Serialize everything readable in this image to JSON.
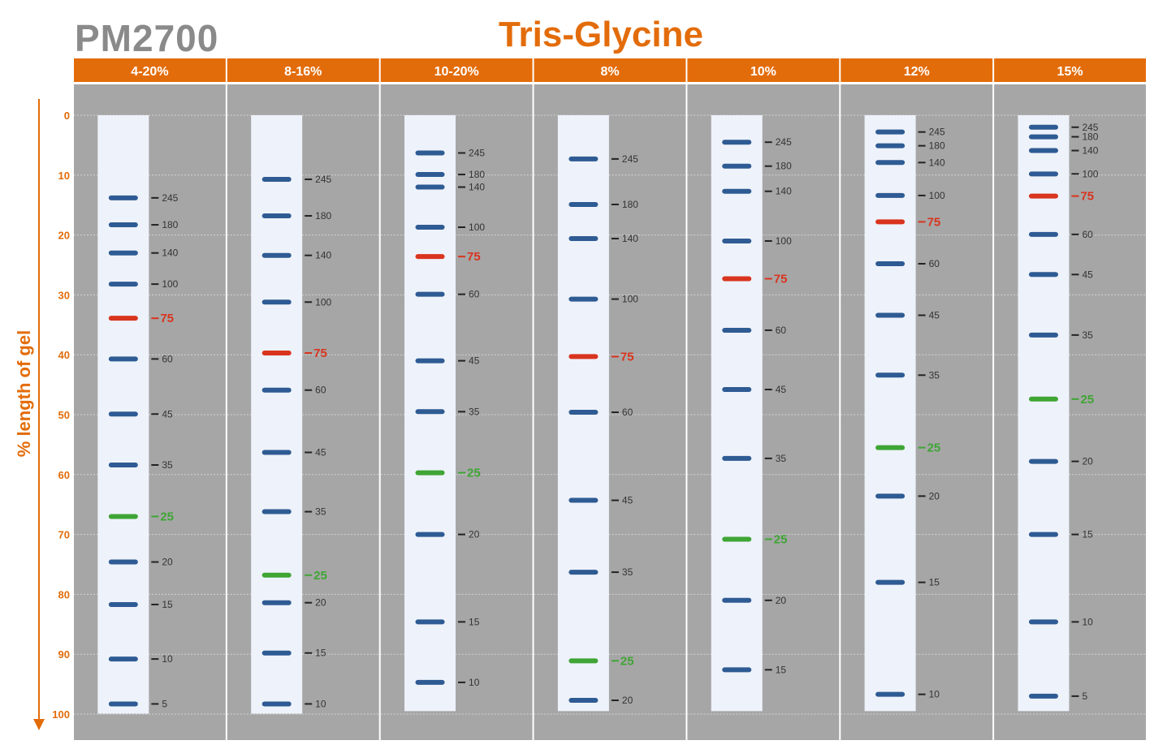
{
  "product_code": "PM2700",
  "chart_data": {
    "type": "table",
    "title": "Tris-Glycine",
    "ylabel": "% length of gel",
    "ylim": [
      0,
      100
    ],
    "yticks": [
      "0",
      "10",
      "20",
      "30",
      "40",
      "50",
      "60",
      "70",
      "80",
      "90",
      "100"
    ],
    "grid": true,
    "colors": {
      "accent": "#E36C0A",
      "panel": "#A6A6A6",
      "lane": "#EEF2FA",
      "band": "#2E5B93",
      "band_75": "#D9341E",
      "band_25": "#3FA535",
      "label": "#333333"
    },
    "gels": [
      {
        "name": "4-20%",
        "bands": [
          {
            "kda": "245",
            "y": 13.8
          },
          {
            "kda": "180",
            "y": 18.3
          },
          {
            "kda": "140",
            "y": 23.0
          },
          {
            "kda": "100",
            "y": 28.2
          },
          {
            "kda": "75",
            "y": 33.9,
            "marker": "red"
          },
          {
            "kda": "60",
            "y": 40.7
          },
          {
            "kda": "45",
            "y": 49.9
          },
          {
            "kda": "35",
            "y": 58.4
          },
          {
            "kda": "25",
            "y": 67.0,
            "marker": "green"
          },
          {
            "kda": "20",
            "y": 74.6
          },
          {
            "kda": "15",
            "y": 81.7
          },
          {
            "kda": "10",
            "y": 90.8
          },
          {
            "kda": "5",
            "y": 98.3
          }
        ]
      },
      {
        "name": "8-16%",
        "bands": [
          {
            "kda": "245",
            "y": 10.7
          },
          {
            "kda": "180",
            "y": 16.8
          },
          {
            "kda": "140",
            "y": 23.4
          },
          {
            "kda": "100",
            "y": 31.2
          },
          {
            "kda": "75",
            "y": 39.7,
            "marker": "red"
          },
          {
            "kda": "60",
            "y": 45.9
          },
          {
            "kda": "45",
            "y": 56.3
          },
          {
            "kda": "35",
            "y": 66.2
          },
          {
            "kda": "25",
            "y": 76.8,
            "marker": "green"
          },
          {
            "kda": "20",
            "y": 81.4
          },
          {
            "kda": "15",
            "y": 89.8
          },
          {
            "kda": "10",
            "y": 98.3
          }
        ]
      },
      {
        "name": "10-20%",
        "bands": [
          {
            "kda": "245",
            "y": 6.3
          },
          {
            "kda": "180",
            "y": 9.9
          },
          {
            "kda": "140",
            "y": 12.0
          },
          {
            "kda": "100",
            "y": 18.7
          },
          {
            "kda": "75",
            "y": 23.6,
            "marker": "red"
          },
          {
            "kda": "60",
            "y": 29.9
          },
          {
            "kda": "45",
            "y": 41.0
          },
          {
            "kda": "35",
            "y": 49.5
          },
          {
            "kda": "25",
            "y": 59.7,
            "marker": "green"
          },
          {
            "kda": "20",
            "y": 70.0
          },
          {
            "kda": "15",
            "y": 84.6
          },
          {
            "kda": "10",
            "y": 94.7
          }
        ]
      },
      {
        "name": "8%",
        "bands": [
          {
            "kda": "245",
            "y": 7.3
          },
          {
            "kda": "180",
            "y": 14.9
          },
          {
            "kda": "140",
            "y": 20.6
          },
          {
            "kda": "100",
            "y": 30.7
          },
          {
            "kda": "75",
            "y": 40.3,
            "marker": "red"
          },
          {
            "kda": "60",
            "y": 49.6
          },
          {
            "kda": "45",
            "y": 64.3
          },
          {
            "kda": "35",
            "y": 76.3
          },
          {
            "kda": "25",
            "y": 91.1,
            "marker": "green"
          },
          {
            "kda": "20",
            "y": 97.7
          }
        ]
      },
      {
        "name": "10%",
        "bands": [
          {
            "kda": "245",
            "y": 4.5
          },
          {
            "kda": "180",
            "y": 8.5
          },
          {
            "kda": "140",
            "y": 12.7
          },
          {
            "kda": "100",
            "y": 21.0
          },
          {
            "kda": "75",
            "y": 27.3,
            "marker": "red"
          },
          {
            "kda": "60",
            "y": 35.9
          },
          {
            "kda": "45",
            "y": 45.8
          },
          {
            "kda": "35",
            "y": 57.3
          },
          {
            "kda": "25",
            "y": 70.8,
            "marker": "green"
          },
          {
            "kda": "20",
            "y": 81.0
          },
          {
            "kda": "15",
            "y": 92.6
          }
        ]
      },
      {
        "name": "12%",
        "bands": [
          {
            "kda": "245",
            "y": 2.8
          },
          {
            "kda": "180",
            "y": 5.1
          },
          {
            "kda": "140",
            "y": 7.9
          },
          {
            "kda": "100",
            "y": 13.4
          },
          {
            "kda": "75",
            "y": 17.8,
            "marker": "red"
          },
          {
            "kda": "60",
            "y": 24.8
          },
          {
            "kda": "45",
            "y": 33.4
          },
          {
            "kda": "35",
            "y": 43.4
          },
          {
            "kda": "25",
            "y": 55.5,
            "marker": "green"
          },
          {
            "kda": "20",
            "y": 63.6
          },
          {
            "kda": "15",
            "y": 78.0
          },
          {
            "kda": "10",
            "y": 96.7
          }
        ]
      },
      {
        "name": "15%",
        "bands": [
          {
            "kda": "245",
            "y": 2.0
          },
          {
            "kda": "180",
            "y": 3.6
          },
          {
            "kda": "140",
            "y": 5.9
          },
          {
            "kda": "100",
            "y": 9.8
          },
          {
            "kda": "75",
            "y": 13.5,
            "marker": "red"
          },
          {
            "kda": "60",
            "y": 19.9
          },
          {
            "kda": "45",
            "y": 26.6
          },
          {
            "kda": "35",
            "y": 36.7
          },
          {
            "kda": "25",
            "y": 47.4,
            "marker": "green"
          },
          {
            "kda": "20",
            "y": 57.8
          },
          {
            "kda": "15",
            "y": 70.0
          },
          {
            "kda": "10",
            "y": 84.6
          },
          {
            "kda": "5",
            "y": 97.0
          }
        ]
      }
    ]
  }
}
